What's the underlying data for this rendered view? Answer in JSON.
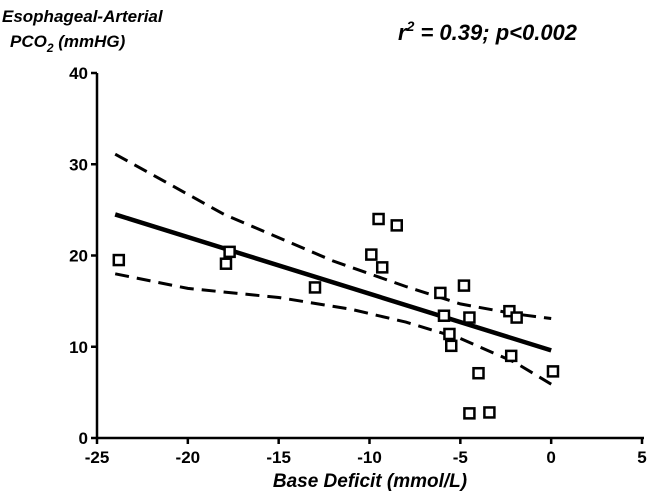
{
  "chart_data": {
    "type": "scatter",
    "ylabel_line1": "Esophageal-Arterial",
    "ylabel_line2_main": "PCO",
    "ylabel_line2_sub": "2",
    "ylabel_line2_rest": " (mmHG)",
    "xlabel": "Base Deficit (mmol/L)",
    "stat_r": "r",
    "stat_sup": "2",
    "stat_rest": " = 0.39; p<0.002",
    "xlim": [
      -25,
      5
    ],
    "ylim": [
      0,
      40
    ],
    "xticks": [
      -25,
      -20,
      -15,
      -10,
      -5,
      0,
      5
    ],
    "yticks": [
      0,
      10,
      20,
      30,
      40
    ],
    "grid": false,
    "points": [
      {
        "x": -23.8,
        "y": 19.5
      },
      {
        "x": -17.9,
        "y": 19.1
      },
      {
        "x": -17.7,
        "y": 20.4
      },
      {
        "x": -13.0,
        "y": 16.5
      },
      {
        "x": -9.9,
        "y": 20.1
      },
      {
        "x": -9.5,
        "y": 24.0
      },
      {
        "x": -9.3,
        "y": 18.7
      },
      {
        "x": -8.5,
        "y": 23.3
      },
      {
        "x": -6.1,
        "y": 15.9
      },
      {
        "x": -5.9,
        "y": 13.4
      },
      {
        "x": -5.6,
        "y": 11.4
      },
      {
        "x": -5.5,
        "y": 10.1
      },
      {
        "x": -4.8,
        "y": 16.7
      },
      {
        "x": -4.5,
        "y": 13.2
      },
      {
        "x": -4.5,
        "y": 2.7
      },
      {
        "x": -4.0,
        "y": 7.1
      },
      {
        "x": -3.4,
        "y": 2.8
      },
      {
        "x": -2.3,
        "y": 13.9
      },
      {
        "x": -2.2,
        "y": 9.0
      },
      {
        "x": -1.9,
        "y": 13.2
      },
      {
        "x": 0.1,
        "y": 7.3
      }
    ],
    "regression": {
      "x": [
        -24,
        0
      ],
      "y": [
        24.5,
        9.6
      ]
    },
    "ci_upper": {
      "x": [
        -24,
        -18,
        -12,
        -8,
        -5,
        -2,
        0
      ],
      "y": [
        31.1,
        24.5,
        19.4,
        16.6,
        14.7,
        13.6,
        13.1
      ]
    },
    "ci_lower": {
      "x": [
        -24,
        -20,
        -15,
        -11,
        -8,
        -5,
        -2,
        0
      ],
      "y": [
        18.0,
        16.4,
        15.4,
        14.1,
        12.7,
        10.9,
        8.3,
        5.9
      ]
    }
  }
}
